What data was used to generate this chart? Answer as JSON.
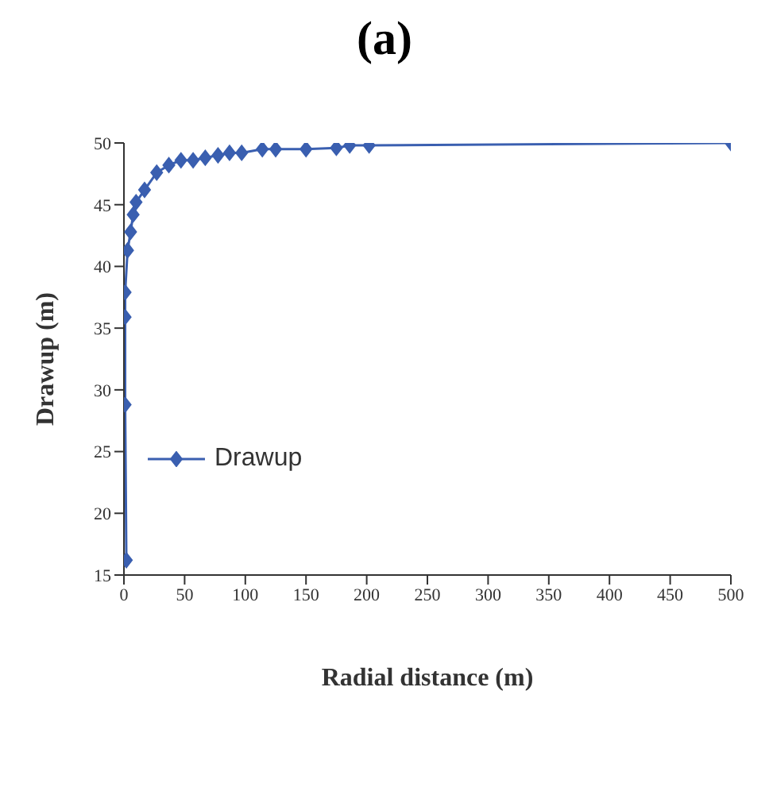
{
  "chart_data": {
    "type": "line",
    "title": "(a)",
    "xlabel": "Radial distance (m)",
    "ylabel": "Drawup (m)",
    "series": [
      {
        "name": "Drawup",
        "color": "#3a5fb0",
        "x": [
          2,
          1,
          1,
          1,
          3,
          5.5,
          7.6,
          10,
          17,
          27,
          37,
          47,
          57,
          67,
          77.5,
          87,
          97,
          114,
          125,
          150,
          175,
          186,
          202,
          500
        ],
        "values": [
          16.2,
          28.8,
          35.9,
          37.9,
          41.3,
          42.8,
          44.2,
          45.2,
          46.2,
          47.6,
          48.2,
          48.6,
          48.6,
          48.8,
          49.0,
          49.2,
          49.2,
          49.5,
          49.5,
          49.5,
          49.6,
          49.8,
          49.8,
          50
        ]
      }
    ],
    "xlim": [
      0,
      500
    ],
    "xticks": [
      0,
      50,
      100,
      150,
      200,
      250,
      300,
      350,
      400,
      450,
      500
    ],
    "ylim": [
      15,
      50
    ],
    "yticks": [
      15,
      20,
      25,
      30,
      35,
      40,
      45,
      50
    ],
    "grid": false,
    "legend": "center",
    "marker": "diamond",
    "line_style": "solid"
  }
}
